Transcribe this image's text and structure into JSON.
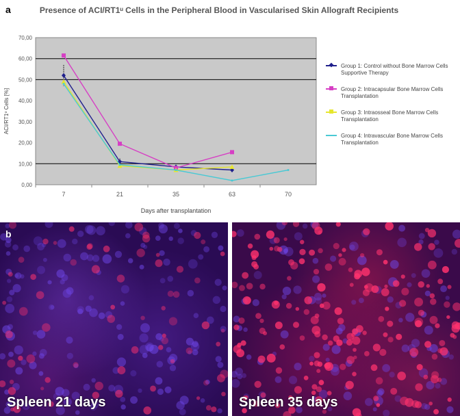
{
  "panel_a_label": "a",
  "panel_b_label": "b",
  "chart_data": {
    "type": "line",
    "title": "Presence of ACI/RT1ᵘ Cells in the Peripheral Blood in Vascularised Skin Allograft  Recipients",
    "xlabel": "Days after transplantation",
    "ylabel": "ACI/RT1ᵘ Cells [%]",
    "categories": [
      "7",
      "21",
      "35",
      "63",
      "70"
    ],
    "ylim": [
      0,
      70
    ],
    "yticks": [
      "0,00",
      "10,00",
      "20,00",
      "30,00",
      "40,00",
      "50,00",
      "60,00",
      "70,00"
    ],
    "gridlines": [
      10,
      50,
      60
    ],
    "legend_position": "right",
    "series": [
      {
        "name": "Group 1: Control without Bone Marrow Cells Supportive Therapy",
        "color": "#1f1f8c",
        "marker": "diamond",
        "values": [
          52,
          11,
          8.5,
          7,
          null
        ],
        "errors": [
          5,
          1.5,
          1,
          1,
          null
        ]
      },
      {
        "name": "Group 2: Intracapsular Bone Marrow Cells Transplantation",
        "color": "#d63fc4",
        "marker": "square",
        "values": [
          61.5,
          19.5,
          8,
          15.5,
          null
        ],
        "errors": [
          null,
          null,
          null,
          null,
          null
        ]
      },
      {
        "name": "Group 3: Intraosseal Bone Marrow Cells Transplantation",
        "color": "#e6e62e",
        "marker": "triangle",
        "values": [
          49,
          9,
          7,
          8.5,
          null
        ],
        "errors": [
          null,
          null,
          null,
          null,
          null
        ]
      },
      {
        "name": "Group 4: Intravascular Bone Marrow Cells Transplantation",
        "color": "#49c9d4",
        "marker": "none",
        "values": [
          48,
          9.5,
          7,
          2,
          7
        ],
        "errors": [
          null,
          null,
          null,
          null,
          null
        ]
      }
    ]
  },
  "panel_b": {
    "left_label": "Spleen 21 days",
    "right_label": "Spleen 35 days"
  }
}
